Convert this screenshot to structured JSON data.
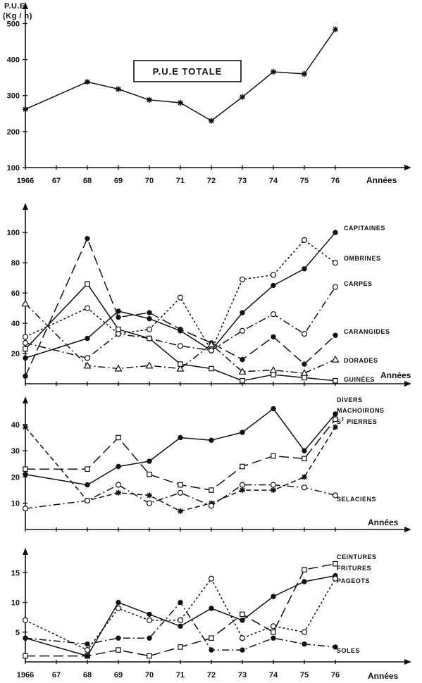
{
  "chart_data": [
    {
      "type": "line",
      "ylabel": "P.U.E\n(Kg / h)",
      "xlabel": "Années",
      "x_tick_labels": [
        "1966",
        "67",
        "68",
        "69",
        "70",
        "71",
        "72",
        "73",
        "74",
        "75",
        "76"
      ],
      "yticks": [
        100,
        200,
        300,
        400,
        500
      ],
      "ylim": [
        100,
        540
      ],
      "annotation": "P.U.E TOTALE",
      "series": [
        {
          "style": "solid",
          "marker": "star",
          "x": [
            1966,
            1968,
            1969,
            1970,
            1971,
            1972,
            1973,
            1974,
            1975,
            1976
          ],
          "values": [
            262,
            338,
            318,
            288,
            280,
            230,
            296,
            366,
            360,
            484
          ]
        }
      ]
    },
    {
      "type": "line",
      "xlabel": "Années",
      "yticks": [
        20,
        40,
        60,
        80,
        100
      ],
      "ylim": [
        0,
        115
      ],
      "series": [
        {
          "name": "CAPITAINES",
          "style": "solid",
          "marker": "filled-circle",
          "x": [
            1966,
            1968,
            1969,
            1970,
            1971,
            1972,
            1973,
            1974,
            1975,
            1976
          ],
          "values": [
            17,
            30,
            48,
            43,
            35,
            22,
            47,
            65,
            76,
            100
          ]
        },
        {
          "name": "OMBRINES",
          "style": "dotted",
          "marker": "open-circle",
          "x": [
            1966,
            1968,
            1969,
            1970,
            1971,
            1972,
            1973,
            1974,
            1975,
            1976
          ],
          "values": [
            31,
            50,
            33,
            36,
            57,
            22,
            69,
            72,
            95,
            80
          ]
        },
        {
          "name": "CARPES",
          "style": "dashdot",
          "marker": "open-circle",
          "x": [
            1966,
            1968,
            1969,
            1970,
            1971,
            1972,
            1973,
            1974,
            1975,
            1976
          ],
          "values": [
            27,
            17,
            33,
            30,
            25,
            22,
            35,
            46,
            33,
            64
          ]
        },
        {
          "name": "CARANGIDES",
          "style": "longdash",
          "marker": "filled-circle",
          "x": [
            1966,
            1968,
            1969,
            1970,
            1971,
            1972,
            1973,
            1974,
            1975,
            1976
          ],
          "values": [
            5,
            96,
            44,
            47,
            36,
            27,
            16,
            31,
            13,
            32
          ]
        },
        {
          "name": "DORADES",
          "style": "dashdot",
          "marker": "open-triangle",
          "x": [
            1966,
            1968,
            1969,
            1970,
            1971,
            1972,
            1973,
            1974,
            1975,
            1976
          ],
          "values": [
            53,
            12,
            10,
            12,
            10,
            26,
            8,
            9,
            7,
            16
          ]
        },
        {
          "name": "GUINÉES",
          "style": "solid",
          "marker": "open-square",
          "x": [
            1966,
            1968,
            1969,
            1970,
            1971,
            1972,
            1973,
            1974,
            1975,
            1976
          ],
          "values": [
            23,
            66,
            36,
            30,
            13,
            10,
            2,
            6,
            4,
            2
          ]
        }
      ]
    },
    {
      "type": "line",
      "xlabel": "Années",
      "yticks": [
        10,
        20,
        30,
        40
      ],
      "ylim": [
        0,
        48
      ],
      "series": [
        {
          "name": "DIVERS",
          "style": "solid",
          "marker": "filled-circle",
          "x": [
            1966,
            1968,
            1969,
            1970,
            1971,
            1972,
            1973,
            1974,
            1975,
            1976
          ],
          "values": [
            21,
            17,
            24,
            26,
            35,
            34,
            37,
            46,
            30,
            44
          ]
        },
        {
          "name": "MACHOIRONS",
          "style": "longdash",
          "marker": "open-square",
          "x": [
            1966,
            1968,
            1969,
            1970,
            1971,
            1972,
            1973,
            1974,
            1975,
            1976
          ],
          "values": [
            23,
            23,
            35,
            21,
            17,
            15,
            24,
            28,
            27,
            42
          ]
        },
        {
          "name": "S<sup>T</sup> PIERRES",
          "label_parts": [
            "S",
            "T",
            " PIERRES"
          ],
          "style": "dashed",
          "marker": "star",
          "x": [
            1966,
            1968,
            1969,
            1970,
            1971,
            1972,
            1973,
            1974,
            1975,
            1976
          ],
          "values": [
            39,
            11,
            14,
            13,
            7,
            10,
            15,
            15,
            20,
            39
          ]
        },
        {
          "name": "SELACIENS",
          "style": "dashdot",
          "marker": "open-circle",
          "x": [
            1966,
            1968,
            1969,
            1970,
            1971,
            1972,
            1973,
            1974,
            1975,
            1976
          ],
          "values": [
            8,
            11,
            17,
            10,
            14,
            9,
            17,
            17,
            16,
            13
          ]
        }
      ]
    },
    {
      "type": "line",
      "xlabel": "Années",
      "x_tick_labels": [
        "1966",
        "67",
        "68",
        "69",
        "70",
        "71",
        "72",
        "73",
        "74",
        "75",
        "76"
      ],
      "yticks": [
        5,
        10,
        15
      ],
      "ylim": [
        0,
        18
      ],
      "series": [
        {
          "name": "CEINTURES",
          "style": "longdash",
          "marker": "open-square",
          "x": [
            1966,
            1968,
            1969,
            1970,
            1971,
            1972,
            1973,
            1974,
            1975,
            1976
          ],
          "values": [
            1,
            1,
            2,
            1,
            2.5,
            4,
            8,
            5,
            15.5,
            16.5
          ]
        },
        {
          "name": "FRITURES",
          "style": "solid",
          "marker": "filled-circle",
          "x": [
            1966,
            1968,
            1969,
            1970,
            1971,
            1972,
            1973,
            1974,
            1975,
            1976
          ],
          "values": [
            4,
            1,
            10,
            8,
            6,
            9,
            7,
            11,
            13.5,
            14.5
          ]
        },
        {
          "name": "PAGEOTS",
          "style": "dotted",
          "marker": "open-circle",
          "x": [
            1966,
            1968,
            1969,
            1970,
            1971,
            1972,
            1973,
            1974,
            1975,
            1976
          ],
          "values": [
            7,
            2,
            9,
            7,
            7,
            14,
            4,
            6,
            5,
            14
          ]
        },
        {
          "name": "SOLES",
          "style": "dashdot",
          "marker": "filled-circle",
          "x": [
            1966,
            1968,
            1969,
            1970,
            1971,
            1972,
            1973,
            1974,
            1975,
            1976
          ],
          "values": [
            4,
            3,
            4,
            4,
            10,
            2,
            2,
            4,
            3,
            2.5
          ]
        }
      ]
    }
  ]
}
